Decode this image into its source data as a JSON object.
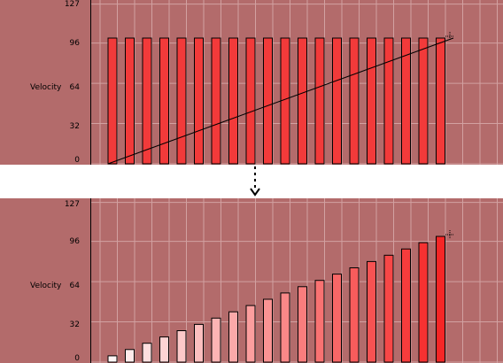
{
  "lane_label": "Velocity",
  "y_ticks": [
    "127",
    "96",
    "64",
    "32",
    "0"
  ],
  "y_tick_values": [
    127,
    96,
    64,
    32,
    0
  ],
  "colors": {
    "background": "#b36b6b",
    "grid": "#d2a1a1",
    "bar_stroke": "#000000"
  },
  "chart_data": [
    {
      "type": "bar",
      "title": "",
      "ylabel": "Velocity",
      "ylim": [
        0,
        127
      ],
      "values": [
        100,
        100,
        100,
        100,
        100,
        100,
        100,
        100,
        100,
        100,
        100,
        100,
        100,
        100,
        100,
        100,
        100,
        100,
        100,
        100
      ],
      "ramp_line": {
        "from": [
          0,
          0
        ],
        "to": [
          20,
          100
        ]
      },
      "cursor_icon": "crosshair-icon"
    },
    {
      "type": "bar",
      "title": "",
      "ylabel": "Velocity",
      "ylim": [
        0,
        127
      ],
      "values": [
        5,
        10,
        15,
        20,
        25,
        30,
        35,
        40,
        45,
        50,
        55,
        60,
        65,
        70,
        75,
        80,
        85,
        90,
        95,
        100
      ],
      "cursor_icon": "crosshair-icon"
    }
  ],
  "transition_icon": "dotted-arrow-down-icon"
}
